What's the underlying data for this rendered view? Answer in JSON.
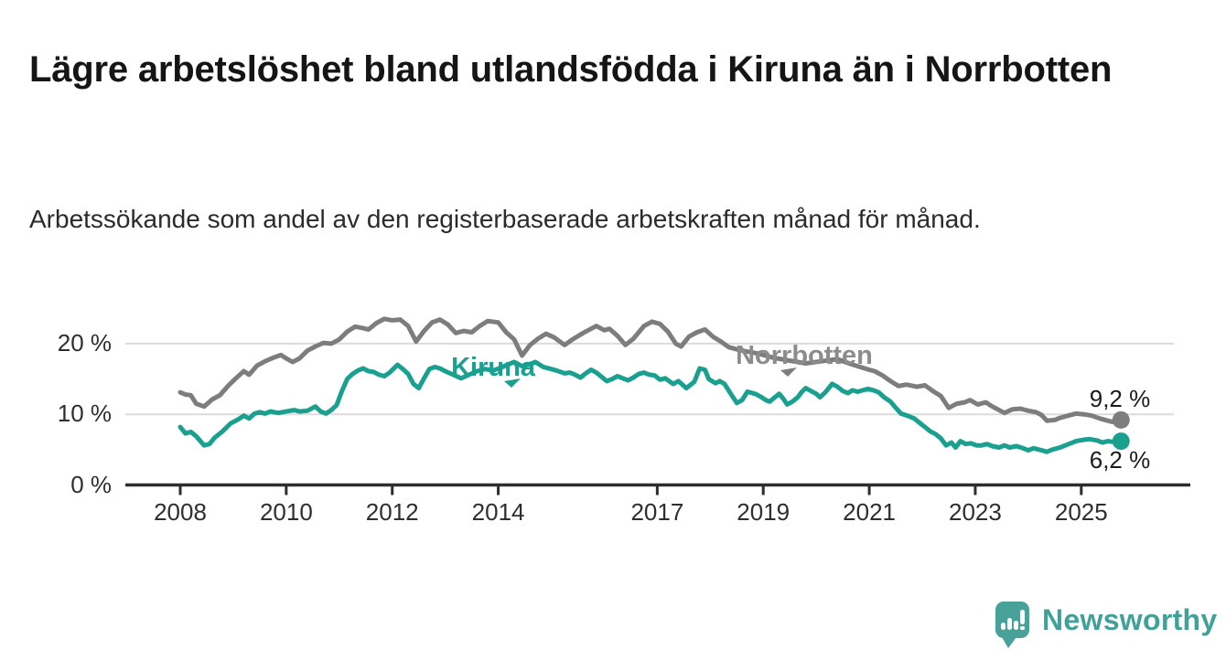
{
  "header": {
    "title": "Lägre arbetslöshet bland utlandsfödda i Kiruna än i Norrbotten",
    "subtitle": "Arbetssökande som andel av den registerbaserade arbetskraften månad för månad."
  },
  "branding": {
    "logo_text": "Newsworthy",
    "logo_icon": "speech-bubble-bar-chart-icon",
    "logo_color": "#41a198"
  },
  "colors": {
    "kiruna_line": "#1aa08f",
    "norrbotten_line": "#7d7d7d",
    "norrbotten_label": "#8c8c8c",
    "axis": "#2d2d2d",
    "gridline": "#dcdcdc",
    "tick_text": "#2e2e2e",
    "value_text": "#1b1b1b"
  },
  "chart_data": {
    "type": "line",
    "title": "Lägre arbetslöshet bland utlandsfödda i Kiruna än i Norrbotten",
    "subtitle": "Arbetssökande som andel av den registerbaserade arbetskraften månad för månad.",
    "unit": "%",
    "grid": true,
    "xlim": [
      2007.85,
      2026.1
    ],
    "ylim": [
      0,
      25
    ],
    "x_axis": {
      "ticks": [
        {
          "label": "2008",
          "year": 2008
        },
        {
          "label": "2010",
          "year": 2010
        },
        {
          "label": "2012",
          "year": 2012
        },
        {
          "label": "2014",
          "year": 2014
        },
        {
          "label": "2017",
          "year": 2017
        },
        {
          "label": "2019",
          "year": 2019
        },
        {
          "label": "2021",
          "year": 2021
        },
        {
          "label": "2023",
          "year": 2023
        },
        {
          "label": "2025",
          "year": 2025
        }
      ]
    },
    "y_axis": {
      "ticks": [
        {
          "label": "20 %",
          "value": 20
        },
        {
          "label": "10 %",
          "value": 10
        },
        {
          "label": "0 %",
          "value": 0
        }
      ]
    },
    "series": [
      {
        "name": "Norrbotten",
        "color": "#7d7d7d",
        "end_label": "9,2 %",
        "end_value": 9.2,
        "points": [
          [
            2008.0,
            13.1
          ],
          [
            2008.1,
            12.8
          ],
          [
            2008.2,
            12.7
          ],
          [
            2008.3,
            11.5
          ],
          [
            2008.45,
            11.1
          ],
          [
            2008.6,
            12.1
          ],
          [
            2008.75,
            12.7
          ],
          [
            2008.9,
            14.0
          ],
          [
            2009.05,
            15.1
          ],
          [
            2009.2,
            16.1
          ],
          [
            2009.3,
            15.6
          ],
          [
            2009.45,
            16.9
          ],
          [
            2009.6,
            17.5
          ],
          [
            2009.75,
            18.0
          ],
          [
            2009.9,
            18.4
          ],
          [
            2010.0,
            17.9
          ],
          [
            2010.12,
            17.4
          ],
          [
            2010.25,
            17.9
          ],
          [
            2010.4,
            19.0
          ],
          [
            2010.55,
            19.6
          ],
          [
            2010.7,
            20.1
          ],
          [
            2010.85,
            20.0
          ],
          [
            2011.0,
            20.6
          ],
          [
            2011.15,
            21.7
          ],
          [
            2011.3,
            22.4
          ],
          [
            2011.45,
            22.2
          ],
          [
            2011.55,
            22.0
          ],
          [
            2011.7,
            22.9
          ],
          [
            2011.85,
            23.5
          ],
          [
            2012.0,
            23.3
          ],
          [
            2012.15,
            23.4
          ],
          [
            2012.3,
            22.5
          ],
          [
            2012.45,
            20.3
          ],
          [
            2012.6,
            21.8
          ],
          [
            2012.75,
            23.0
          ],
          [
            2012.9,
            23.4
          ],
          [
            2013.05,
            22.7
          ],
          [
            2013.2,
            21.5
          ],
          [
            2013.35,
            21.8
          ],
          [
            2013.5,
            21.6
          ],
          [
            2013.65,
            22.5
          ],
          [
            2013.8,
            23.2
          ],
          [
            2014.0,
            23.0
          ],
          [
            2014.15,
            21.6
          ],
          [
            2014.3,
            20.6
          ],
          [
            2014.45,
            18.3
          ],
          [
            2014.6,
            19.8
          ],
          [
            2014.75,
            20.7
          ],
          [
            2014.9,
            21.4
          ],
          [
            2015.05,
            20.9
          ],
          [
            2015.25,
            19.8
          ],
          [
            2015.4,
            20.6
          ],
          [
            2015.6,
            21.5
          ],
          [
            2015.85,
            22.5
          ],
          [
            2016.0,
            21.9
          ],
          [
            2016.1,
            22.1
          ],
          [
            2016.25,
            21.1
          ],
          [
            2016.4,
            19.8
          ],
          [
            2016.55,
            20.7
          ],
          [
            2016.75,
            22.5
          ],
          [
            2016.9,
            23.1
          ],
          [
            2017.05,
            22.8
          ],
          [
            2017.2,
            21.7
          ],
          [
            2017.35,
            20.0
          ],
          [
            2017.45,
            19.6
          ],
          [
            2017.6,
            21.0
          ],
          [
            2017.75,
            21.6
          ],
          [
            2017.9,
            22.0
          ],
          [
            2018.05,
            21.0
          ],
          [
            2018.2,
            20.3
          ],
          [
            2018.35,
            19.5
          ],
          [
            2018.6,
            19.0
          ],
          [
            2018.9,
            18.6
          ],
          [
            2019.2,
            18.0
          ],
          [
            2019.5,
            17.6
          ],
          [
            2019.8,
            17.2
          ],
          [
            2020.1,
            17.5
          ],
          [
            2020.4,
            17.8
          ],
          [
            2020.7,
            17.0
          ],
          [
            2021.0,
            16.3
          ],
          [
            2021.1,
            16.1
          ],
          [
            2021.25,
            15.5
          ],
          [
            2021.4,
            14.7
          ],
          [
            2021.55,
            14.0
          ],
          [
            2021.7,
            14.2
          ],
          [
            2021.9,
            13.9
          ],
          [
            2022.05,
            14.1
          ],
          [
            2022.2,
            13.3
          ],
          [
            2022.35,
            12.6
          ],
          [
            2022.5,
            10.9
          ],
          [
            2022.65,
            11.5
          ],
          [
            2022.8,
            11.7
          ],
          [
            2022.9,
            12.0
          ],
          [
            2023.05,
            11.4
          ],
          [
            2023.2,
            11.7
          ],
          [
            2023.3,
            11.2
          ],
          [
            2023.45,
            10.6
          ],
          [
            2023.55,
            10.2
          ],
          [
            2023.7,
            10.7
          ],
          [
            2023.85,
            10.8
          ],
          [
            2024.0,
            10.5
          ],
          [
            2024.15,
            10.3
          ],
          [
            2024.25,
            9.9
          ],
          [
            2024.35,
            9.1
          ],
          [
            2024.5,
            9.2
          ],
          [
            2024.6,
            9.5
          ],
          [
            2024.75,
            9.8
          ],
          [
            2024.9,
            10.1
          ],
          [
            2025.05,
            10.0
          ],
          [
            2025.2,
            9.8
          ],
          [
            2025.35,
            9.4
          ],
          [
            2025.5,
            9.1
          ],
          [
            2025.6,
            8.9
          ],
          [
            2025.75,
            9.2
          ]
        ]
      },
      {
        "name": "Kiruna",
        "color": "#1aa08f",
        "end_label": "6,2 %",
        "end_value": 6.2,
        "points": [
          [
            2008.0,
            8.2
          ],
          [
            2008.1,
            7.3
          ],
          [
            2008.2,
            7.5
          ],
          [
            2008.3,
            6.9
          ],
          [
            2008.45,
            5.6
          ],
          [
            2008.55,
            5.8
          ],
          [
            2008.65,
            6.7
          ],
          [
            2008.8,
            7.6
          ],
          [
            2008.95,
            8.7
          ],
          [
            2009.1,
            9.3
          ],
          [
            2009.2,
            9.8
          ],
          [
            2009.3,
            9.4
          ],
          [
            2009.4,
            10.1
          ],
          [
            2009.5,
            10.3
          ],
          [
            2009.6,
            10.1
          ],
          [
            2009.7,
            10.4
          ],
          [
            2009.85,
            10.2
          ],
          [
            2010.0,
            10.4
          ],
          [
            2010.15,
            10.6
          ],
          [
            2010.25,
            10.4
          ],
          [
            2010.4,
            10.5
          ],
          [
            2010.55,
            11.1
          ],
          [
            2010.65,
            10.4
          ],
          [
            2010.75,
            10.1
          ],
          [
            2010.85,
            10.6
          ],
          [
            2010.95,
            11.3
          ],
          [
            2011.05,
            13.3
          ],
          [
            2011.15,
            15.0
          ],
          [
            2011.25,
            15.7
          ],
          [
            2011.35,
            16.2
          ],
          [
            2011.45,
            16.5
          ],
          [
            2011.55,
            16.1
          ],
          [
            2011.65,
            16.0
          ],
          [
            2011.75,
            15.6
          ],
          [
            2011.85,
            15.4
          ],
          [
            2011.95,
            15.9
          ],
          [
            2012.1,
            17.0
          ],
          [
            2012.2,
            16.4
          ],
          [
            2012.3,
            15.7
          ],
          [
            2012.4,
            14.3
          ],
          [
            2012.5,
            13.7
          ],
          [
            2012.6,
            15.1
          ],
          [
            2012.7,
            16.4
          ],
          [
            2012.8,
            16.7
          ],
          [
            2012.9,
            16.5
          ],
          [
            2013.0,
            16.1
          ],
          [
            2013.15,
            15.6
          ],
          [
            2013.3,
            15.1
          ],
          [
            2013.45,
            15.6
          ],
          [
            2013.6,
            16.1
          ],
          [
            2013.75,
            16.4
          ],
          [
            2013.9,
            16.2
          ],
          [
            2014.05,
            16.6
          ],
          [
            2014.2,
            17.1
          ],
          [
            2014.3,
            17.4
          ],
          [
            2014.45,
            16.8
          ],
          [
            2014.6,
            17.1
          ],
          [
            2014.7,
            17.4
          ],
          [
            2014.85,
            16.7
          ],
          [
            2015.0,
            16.4
          ],
          [
            2015.1,
            16.2
          ],
          [
            2015.25,
            15.8
          ],
          [
            2015.35,
            15.9
          ],
          [
            2015.45,
            15.6
          ],
          [
            2015.55,
            15.2
          ],
          [
            2015.65,
            15.8
          ],
          [
            2015.75,
            16.3
          ],
          [
            2015.85,
            15.9
          ],
          [
            2015.95,
            15.3
          ],
          [
            2016.05,
            14.7
          ],
          [
            2016.15,
            15.0
          ],
          [
            2016.25,
            15.4
          ],
          [
            2016.35,
            15.1
          ],
          [
            2016.45,
            14.8
          ],
          [
            2016.55,
            15.2
          ],
          [
            2016.65,
            15.7
          ],
          [
            2016.75,
            15.9
          ],
          [
            2016.85,
            15.6
          ],
          [
            2016.95,
            15.5
          ],
          [
            2017.05,
            14.9
          ],
          [
            2017.15,
            15.1
          ],
          [
            2017.3,
            14.3
          ],
          [
            2017.4,
            14.7
          ],
          [
            2017.55,
            13.7
          ],
          [
            2017.7,
            14.6
          ],
          [
            2017.8,
            16.5
          ],
          [
            2017.9,
            16.3
          ],
          [
            2017.97,
            15.0
          ],
          [
            2018.1,
            14.4
          ],
          [
            2018.18,
            14.7
          ],
          [
            2018.27,
            14.3
          ],
          [
            2018.37,
            13.1
          ],
          [
            2018.5,
            11.6
          ],
          [
            2018.6,
            12.0
          ],
          [
            2018.7,
            13.2
          ],
          [
            2018.85,
            12.9
          ],
          [
            2018.95,
            12.5
          ],
          [
            2019.05,
            12.0
          ],
          [
            2019.12,
            11.8
          ],
          [
            2019.22,
            12.4
          ],
          [
            2019.3,
            12.9
          ],
          [
            2019.38,
            12.2
          ],
          [
            2019.45,
            11.4
          ],
          [
            2019.55,
            11.8
          ],
          [
            2019.65,
            12.4
          ],
          [
            2019.72,
            13.1
          ],
          [
            2019.8,
            13.7
          ],
          [
            2019.9,
            13.3
          ],
          [
            2020.0,
            12.9
          ],
          [
            2020.07,
            12.4
          ],
          [
            2020.17,
            13.1
          ],
          [
            2020.3,
            14.3
          ],
          [
            2020.4,
            13.9
          ],
          [
            2020.5,
            13.3
          ],
          [
            2020.6,
            13.0
          ],
          [
            2020.68,
            13.4
          ],
          [
            2020.78,
            13.2
          ],
          [
            2020.88,
            13.4
          ],
          [
            2020.98,
            13.6
          ],
          [
            2021.08,
            13.4
          ],
          [
            2021.18,
            13.1
          ],
          [
            2021.28,
            12.4
          ],
          [
            2021.4,
            11.8
          ],
          [
            2021.5,
            10.9
          ],
          [
            2021.6,
            10.1
          ],
          [
            2021.72,
            9.8
          ],
          [
            2021.85,
            9.4
          ],
          [
            2021.95,
            8.8
          ],
          [
            2022.05,
            8.2
          ],
          [
            2022.15,
            7.6
          ],
          [
            2022.25,
            7.2
          ],
          [
            2022.35,
            6.6
          ],
          [
            2022.45,
            5.6
          ],
          [
            2022.55,
            6.0
          ],
          [
            2022.63,
            5.3
          ],
          [
            2022.72,
            6.2
          ],
          [
            2022.82,
            5.8
          ],
          [
            2022.92,
            5.9
          ],
          [
            2023.02,
            5.6
          ],
          [
            2023.12,
            5.6
          ],
          [
            2023.22,
            5.8
          ],
          [
            2023.32,
            5.5
          ],
          [
            2023.45,
            5.3
          ],
          [
            2023.55,
            5.6
          ],
          [
            2023.65,
            5.3
          ],
          [
            2023.78,
            5.5
          ],
          [
            2023.9,
            5.2
          ],
          [
            2024.0,
            4.9
          ],
          [
            2024.1,
            5.2
          ],
          [
            2024.25,
            4.9
          ],
          [
            2024.35,
            4.7
          ],
          [
            2024.45,
            5.0
          ],
          [
            2024.6,
            5.3
          ],
          [
            2024.7,
            5.6
          ],
          [
            2024.8,
            5.9
          ],
          [
            2024.9,
            6.2
          ],
          [
            2025.05,
            6.4
          ],
          [
            2025.15,
            6.5
          ],
          [
            2025.3,
            6.3
          ],
          [
            2025.4,
            6.0
          ],
          [
            2025.5,
            6.2
          ],
          [
            2025.6,
            6.1
          ],
          [
            2025.75,
            6.2
          ]
        ]
      }
    ]
  }
}
